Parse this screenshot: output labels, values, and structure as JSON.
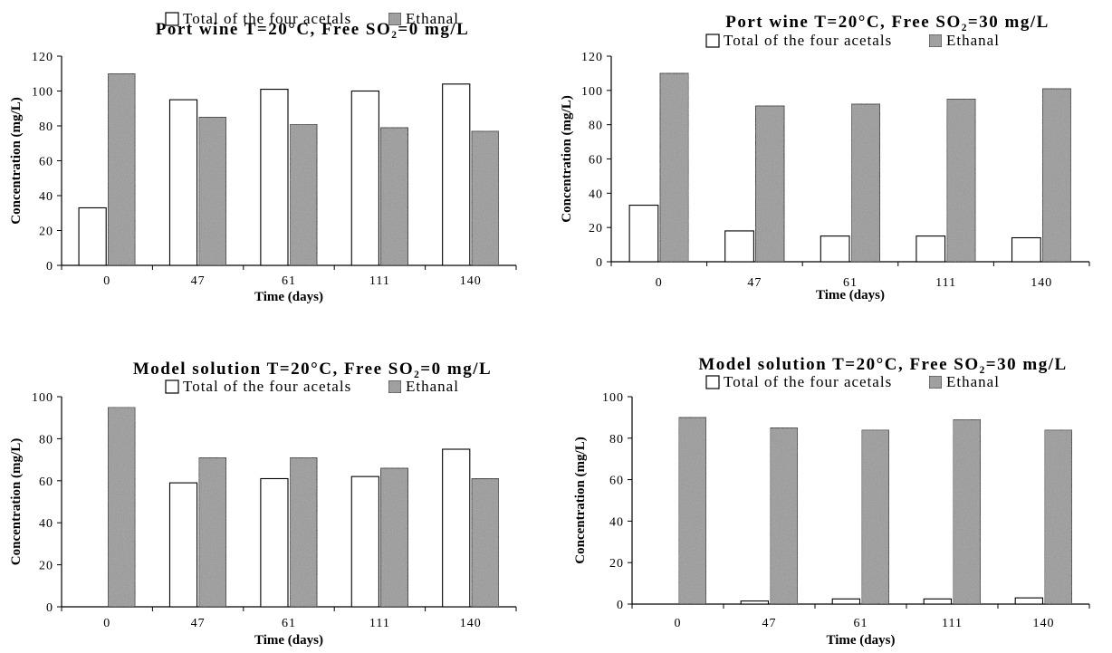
{
  "colors": {
    "acetals": "#ffffff",
    "ethanal": "#9a9a9a",
    "ink": "#000000"
  },
  "chart_data": [
    {
      "type": "bar",
      "title": "Port wine T=20°C, Free SO₂=0 mg/L",
      "xlabel": "Time (days)",
      "ylabel": "Concentration (mg/L)",
      "categories": [
        "0",
        "47",
        "61",
        "111",
        "140"
      ],
      "ylim": [
        0,
        120
      ],
      "yticks": [
        0,
        20,
        40,
        60,
        80,
        100,
        120
      ],
      "grid": false,
      "legend": "top",
      "series": [
        {
          "name": "Total of the four acetals",
          "values": [
            33,
            95,
            101,
            100,
            104
          ]
        },
        {
          "name": "Ethanal",
          "values": [
            110,
            85,
            81,
            79,
            77
          ]
        }
      ]
    },
    {
      "type": "bar",
      "title": "Port wine T=20°C, Free SO₂=30 mg/L",
      "xlabel": "Time (days)",
      "ylabel": "Concentration (mg/L)",
      "categories": [
        "0",
        "47",
        "61",
        "111",
        "140"
      ],
      "ylim": [
        0,
        120
      ],
      "yticks": [
        0,
        20,
        40,
        60,
        80,
        100,
        120
      ],
      "grid": false,
      "legend": "top",
      "series": [
        {
          "name": "Total of the four acetals",
          "values": [
            33,
            18,
            15,
            15,
            14
          ]
        },
        {
          "name": "Ethanal",
          "values": [
            110,
            91,
            92,
            95,
            101
          ]
        }
      ]
    },
    {
      "type": "bar",
      "title": "Model solution T=20°C, Free SO₂=0 mg/L",
      "xlabel": "Time (days)",
      "ylabel": "Concentration (mg/L)",
      "categories": [
        "0",
        "47",
        "61",
        "111",
        "140"
      ],
      "ylim": [
        0,
        100
      ],
      "yticks": [
        0,
        20,
        40,
        60,
        80,
        100
      ],
      "grid": false,
      "legend": "top",
      "series": [
        {
          "name": "Total of the four acetals",
          "values": [
            0,
            59,
            61,
            62,
            75
          ]
        },
        {
          "name": "Ethanal",
          "values": [
            95,
            71,
            71,
            66,
            61
          ]
        }
      ]
    },
    {
      "type": "bar",
      "title": "Model solution T=20°C, Free SO₂=30 mg/L",
      "xlabel": "Time (days)",
      "ylabel": "Concentration (mg/L)",
      "categories": [
        "0",
        "47",
        "61",
        "111",
        "140"
      ],
      "ylim": [
        0,
        100
      ],
      "yticks": [
        0,
        20,
        40,
        60,
        80,
        100
      ],
      "grid": false,
      "legend": "top",
      "series": [
        {
          "name": "Total of the four acetals",
          "values": [
            0,
            1.5,
            2.5,
            2.5,
            3
          ]
        },
        {
          "name": "Ethanal",
          "values": [
            90,
            85,
            84,
            89,
            84
          ]
        }
      ]
    }
  ]
}
